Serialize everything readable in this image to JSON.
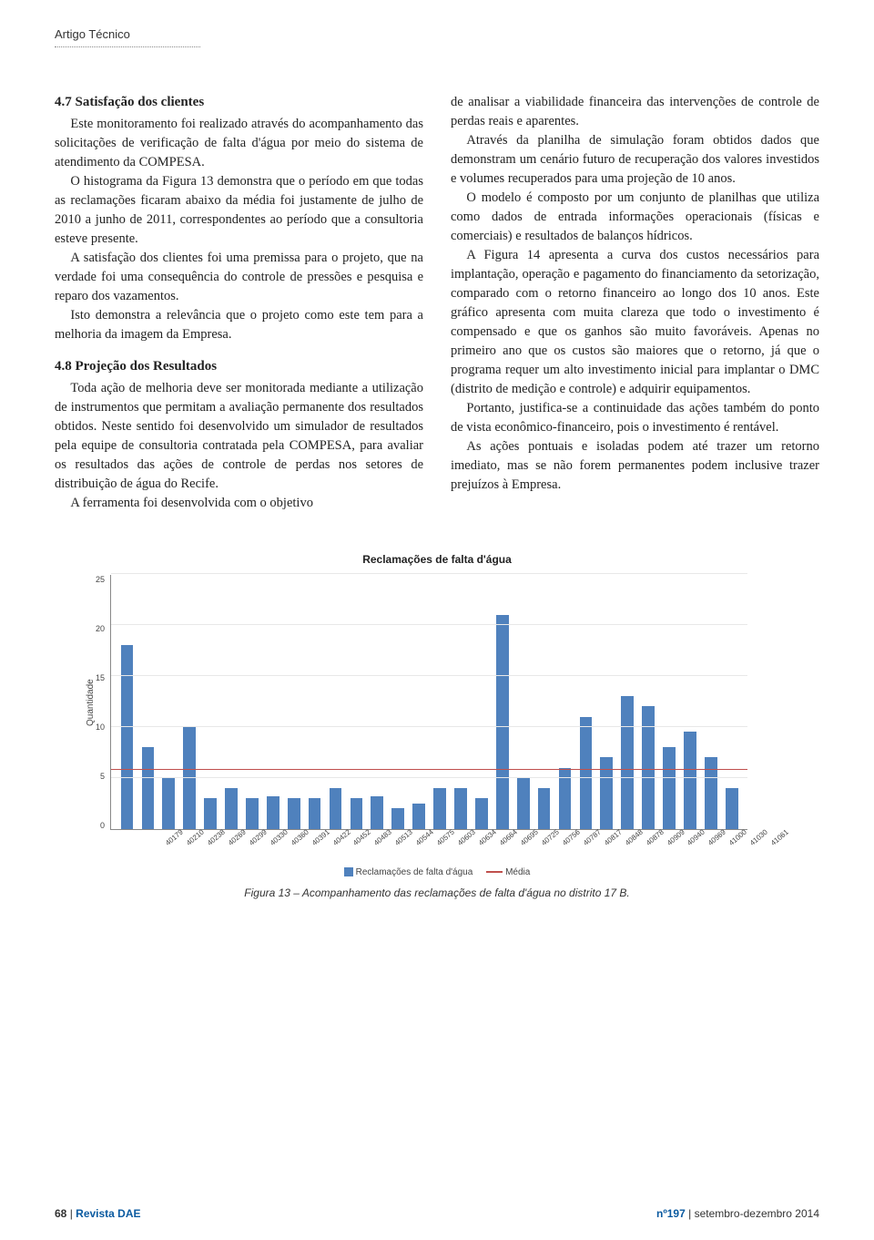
{
  "header": {
    "label": "Artigo Técnico"
  },
  "col1": {
    "s1_title": "4.7 Satisfação dos clientes",
    "s1_p1": "Este monitoramento foi realizado através do acompanhamento das solicitações de verificação de falta d'água por meio do sistema de atendimento da COMPESA.",
    "s1_p2": "O histograma da Figura 13 demonstra que o período em que todas as reclamações ficaram abaixo da média foi justamente de julho de 2010 a junho de 2011, correspondentes ao período que a consultoria esteve presente.",
    "s1_p3": "A satisfação dos clientes foi uma premissa para o projeto, que na verdade foi uma consequência do controle de pressões e pesquisa e reparo dos vazamentos.",
    "s1_p4": "Isto demonstra a relevância que o projeto como este tem para a melhoria da imagem da Empresa.",
    "s2_title": "4.8 Projeção dos Resultados",
    "s2_p1": "Toda ação de melhoria deve ser monitorada mediante a utilização de instrumentos que permitam a avaliação permanente dos resultados obtidos. Neste sentido foi desenvolvido um simulador de resultados pela equipe de consultoria contratada pela COMPESA, para avaliar os resultados das ações de controle de perdas nos setores de distribuição de água do Recife.",
    "s2_p2": "A ferramenta foi desenvolvida com o objetivo"
  },
  "col2": {
    "p1": "de analisar a viabilidade financeira das intervenções de controle de perdas reais e aparentes.",
    "p2": "Através da planilha de simulação foram obtidos dados que demonstram um cenário futuro de recuperação dos valores investidos e volumes recuperados para uma projeção de 10 anos.",
    "p3": "O modelo é composto por um conjunto de planilhas que utiliza como dados de entrada informações operacionais (físicas e comerciais) e resultados de balanços hídricos.",
    "p4": "A Figura 14 apresenta a curva dos custos necessários para implantação, operação e pagamento do financiamento da setorização, comparado com o retorno financeiro ao longo dos 10 anos. Este gráfico apresenta com muita clareza que todo o investimento é compensado e que os ganhos são muito favoráveis. Apenas no primeiro ano que os custos são maiores que o retorno, já que o programa requer um alto investimento inicial para implantar o DMC (distrito de medição e controle) e adquirir equipamentos.",
    "p5": "Portanto, justifica-se a continuidade das ações também do ponto de vista econômico-financeiro, pois o investimento é rentável.",
    "p6": "As ações pontuais e isoladas podem até trazer um retorno imediato, mas se não forem permanentes podem inclusive trazer prejuízos à Empresa."
  },
  "chart": {
    "type": "bar",
    "title": "Reclamações de falta d'água",
    "ylabel": "Quantidade",
    "ylim_max": 25,
    "ytick_step": 5,
    "yticks": [
      "25",
      "20",
      "15",
      "10",
      "5",
      "0"
    ],
    "avg_value": 5.8,
    "bar_color": "#4f81bd",
    "avg_color": "#c0504d",
    "grid_color": "#e8e8e8",
    "bg_color": "#ffffff",
    "categories": [
      "40179",
      "40210",
      "40238",
      "40269",
      "40299",
      "40330",
      "40360",
      "40391",
      "40422",
      "40452",
      "40483",
      "40513",
      "40544",
      "40575",
      "40603",
      "40634",
      "40664",
      "40695",
      "40725",
      "40756",
      "40787",
      "40817",
      "40848",
      "40878",
      "40909",
      "40940",
      "40969",
      "41000",
      "41030",
      "41061"
    ],
    "values": [
      18,
      8,
      5,
      10,
      3,
      4,
      3,
      3.2,
      3,
      3,
      4,
      3,
      3.2,
      2,
      2.5,
      4,
      4,
      3,
      21,
      5,
      4,
      6,
      11,
      7,
      13,
      12,
      8,
      9.5,
      7,
      4
    ],
    "legend_series": "Reclamações de falta d'água",
    "legend_avg": "Média",
    "caption": "Figura 13 – Acompanhamento das reclamações de falta d'água no distrito 17 B."
  },
  "footer": {
    "page": "68",
    "sep": " | ",
    "magazine": "Revista DAE",
    "issue_no": "nº197",
    "issue_period": "setembro-dezembro 2014"
  }
}
